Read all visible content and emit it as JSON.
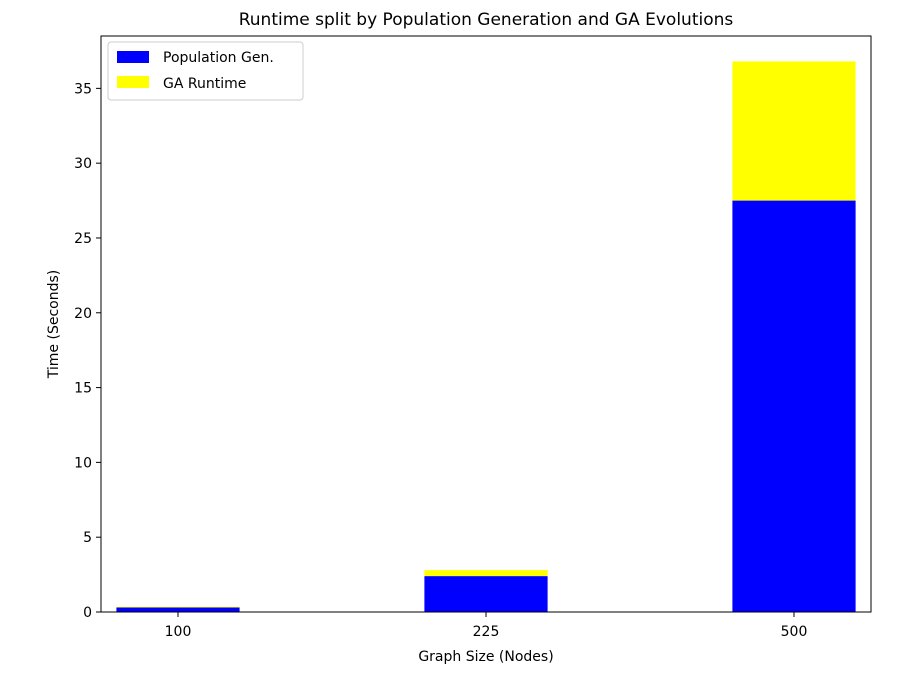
{
  "chart_data": {
    "type": "bar",
    "stacked": true,
    "title": "Runtime split by Population Generation and GA Evolutions",
    "xlabel": "Graph Size (Nodes)",
    "ylabel": "Time (Seconds)",
    "categories": [
      "100",
      "225",
      "500"
    ],
    "series": [
      {
        "name": "Population Gen.",
        "color": "#0000ff",
        "values": [
          0.3,
          2.4,
          27.5
        ]
      },
      {
        "name": "GA Runtime",
        "color": "#ffff00",
        "values": [
          0.05,
          0.4,
          9.3
        ]
      }
    ],
    "ylim": [
      0,
      38.5
    ],
    "yticks": [
      0,
      5,
      10,
      15,
      20,
      25,
      30,
      35
    ],
    "grid": false,
    "legend_position": "top-left"
  }
}
